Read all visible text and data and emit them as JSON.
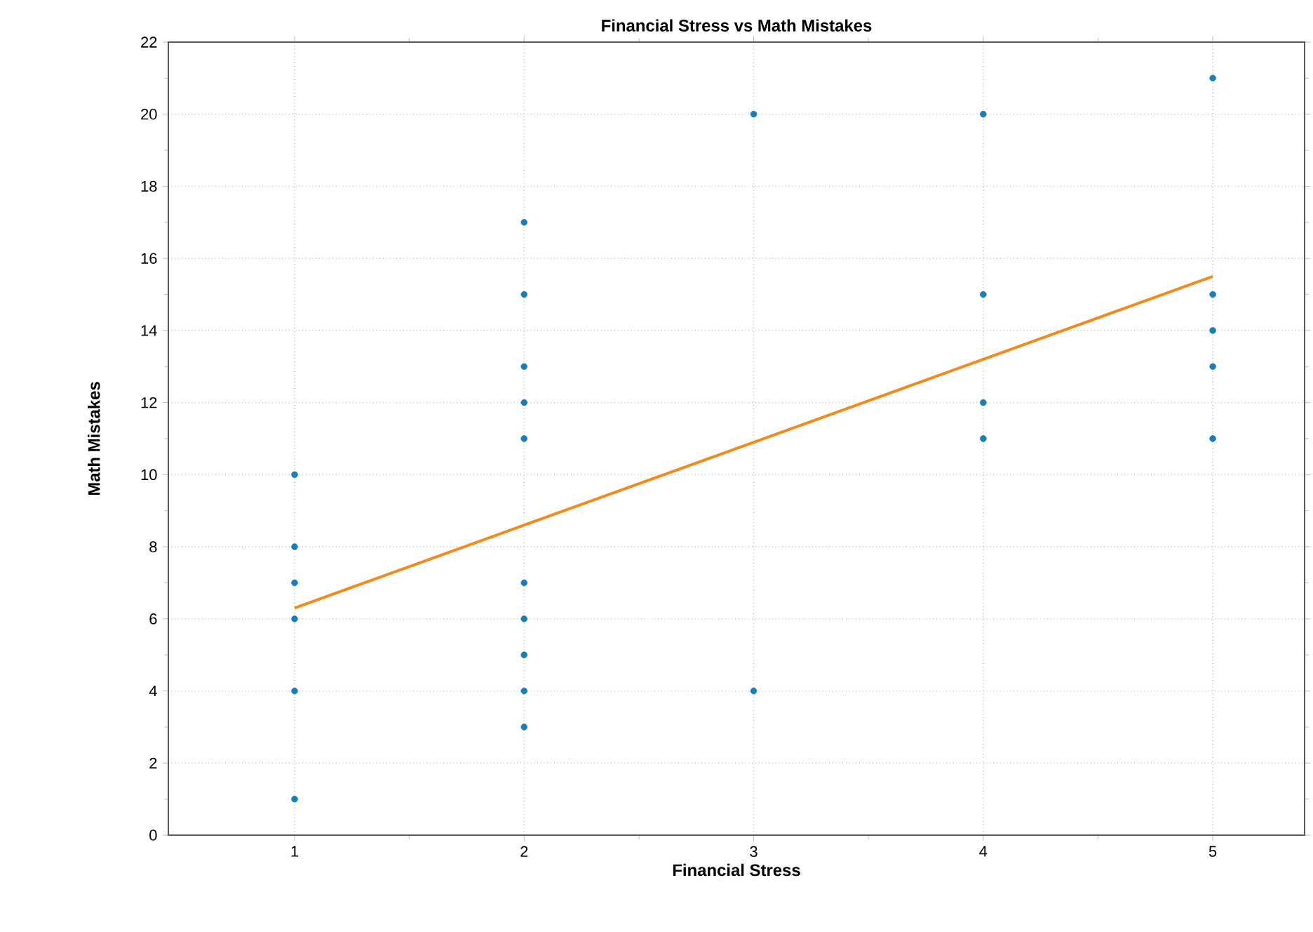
{
  "chart_data": {
    "type": "scatter",
    "title": "Financial Stress vs Math Mistakes",
    "xlabel": "Financial Stress",
    "ylabel": "Math Mistakes",
    "xlim": [
      0.45,
      5.4
    ],
    "ylim": [
      0,
      22
    ],
    "xticks": [
      1,
      2,
      3,
      4,
      5
    ],
    "yticks": [
      0,
      2,
      4,
      6,
      8,
      10,
      12,
      14,
      16,
      18,
      20,
      22
    ],
    "grid": true,
    "series": [
      {
        "color": "#1a7db5",
        "marker": "circle",
        "x": [
          1,
          1,
          1,
          1,
          1,
          1,
          2,
          2,
          2,
          2,
          2,
          2,
          2,
          2,
          2,
          2,
          3,
          3,
          4,
          4,
          4,
          4,
          5,
          5,
          5,
          5,
          5
        ],
        "values": [
          10,
          8,
          7,
          6,
          4,
          1,
          17,
          15,
          13,
          12,
          11,
          7,
          6,
          5,
          4,
          3,
          20,
          4,
          20,
          15,
          12,
          11,
          21,
          15,
          14,
          13,
          11
        ]
      },
      {
        "type": "line",
        "color": "#f28a1c",
        "marker": "none",
        "line_style": "solid",
        "x": [
          1,
          5
        ],
        "values": [
          6.3,
          15.5
        ]
      }
    ]
  }
}
